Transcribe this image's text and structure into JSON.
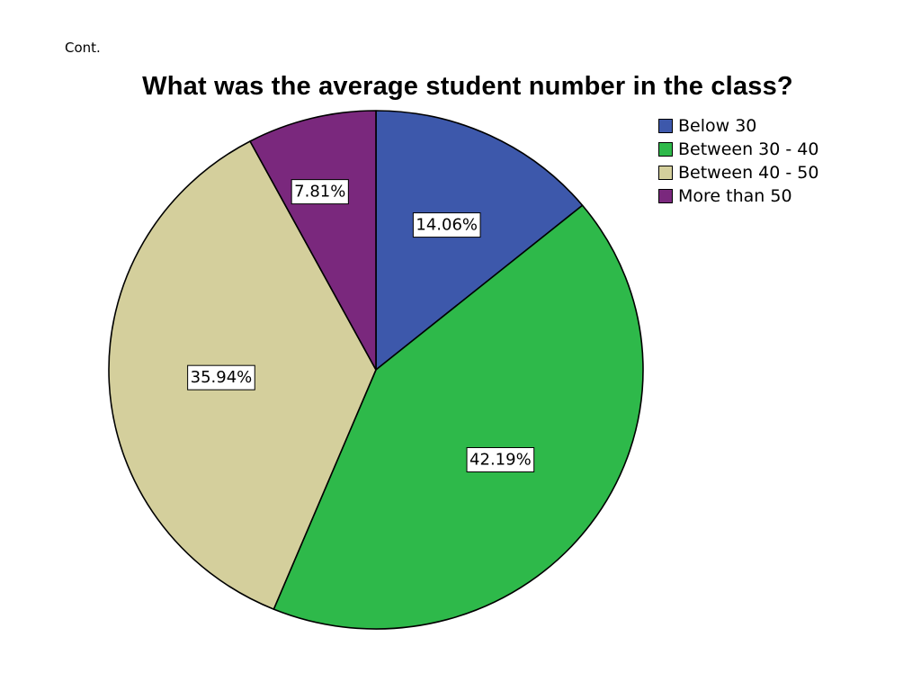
{
  "slide": {
    "label": "Cont."
  },
  "chart_data": {
    "type": "pie",
    "title": "What was the average student number in the class?",
    "categories": [
      "Below 30",
      "Between 30 - 40",
      "Between 40 - 50",
      "More than 50"
    ],
    "values": [
      14.06,
      42.19,
      35.94,
      7.81
    ],
    "labels": [
      "14.06%",
      "42.19%",
      "35.94%",
      "7.81%"
    ],
    "colors": [
      "#3d58ab",
      "#2eb94a",
      "#d4cf9c",
      "#7a287d"
    ],
    "start_angle": "12 o'clock",
    "direction": "clockwise",
    "legend_position": "top-right"
  }
}
